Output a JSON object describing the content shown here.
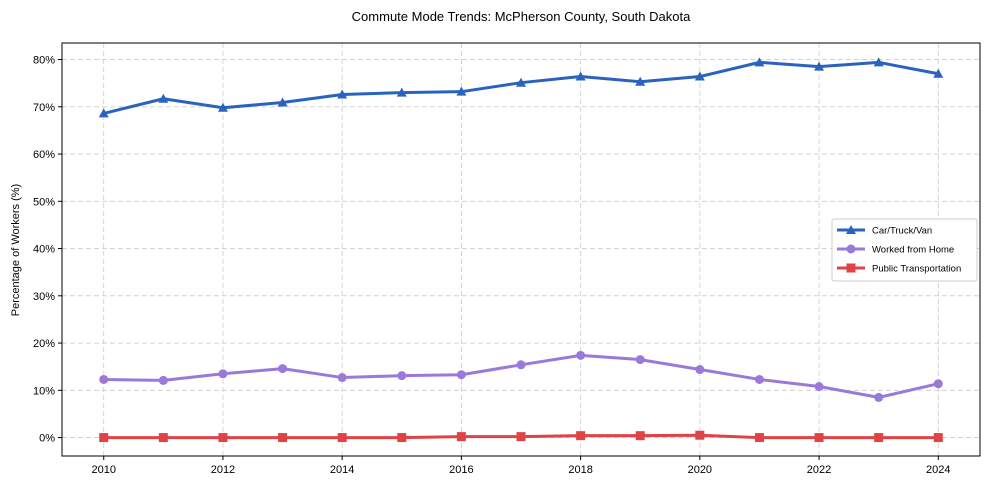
{
  "chart_data": {
    "type": "line",
    "title": "Commute Mode Trends: McPherson County, South Dakota",
    "xlabel": "",
    "ylabel": "Percentage of Workers (%)",
    "x": [
      2010,
      2011,
      2012,
      2013,
      2014,
      2015,
      2016,
      2017,
      2018,
      2019,
      2020,
      2021,
      2022,
      2023,
      2024
    ],
    "xticks": [
      "2010",
      "2012",
      "2014",
      "2016",
      "2018",
      "2020",
      "2022",
      "2024"
    ],
    "yticks": [
      "0%",
      "10%",
      "20%",
      "30%",
      "40%",
      "50%",
      "60%",
      "70%",
      "80%"
    ],
    "ylim": [
      -3.9,
      83.5
    ],
    "xlim": [
      2009.3,
      2024.7
    ],
    "grid": true,
    "legend_position": "center-right",
    "series": [
      {
        "name": "Car/Truck/Van",
        "color": "#2a63be",
        "marker": "triangle",
        "values": [
          68.6,
          71.7,
          69.8,
          70.9,
          72.6,
          73.0,
          73.2,
          75.1,
          76.4,
          75.3,
          76.4,
          79.4,
          78.5,
          79.4,
          77.0
        ]
      },
      {
        "name": "Worked from Home",
        "color": "#9b79db",
        "marker": "circle",
        "values": [
          12.3,
          12.1,
          13.5,
          14.6,
          12.7,
          13.1,
          13.3,
          15.4,
          17.4,
          16.5,
          14.4,
          12.3,
          10.8,
          8.5,
          11.4
        ]
      },
      {
        "name": "Public Transportation",
        "color": "#e04345",
        "marker": "square",
        "values": [
          0,
          0,
          0,
          0,
          0,
          0,
          0.2,
          0.2,
          0.4,
          0.4,
          0.5,
          0,
          0,
          0,
          0
        ]
      }
    ]
  }
}
